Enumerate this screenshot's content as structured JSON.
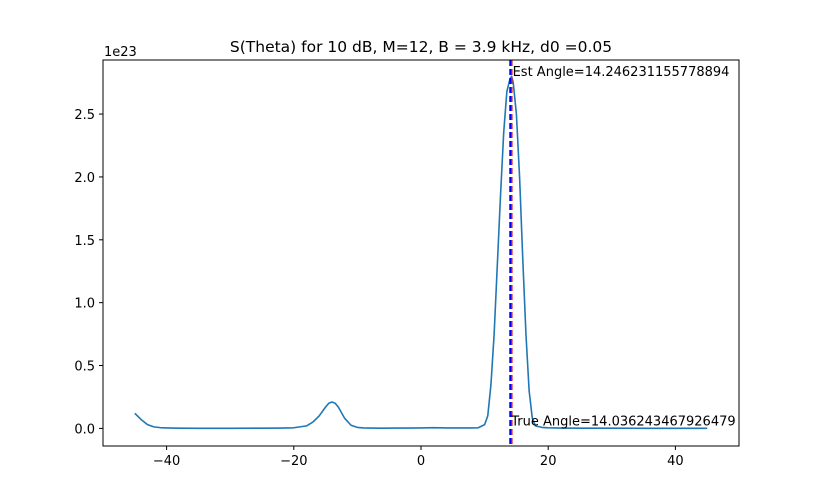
{
  "chart_data": {
    "type": "line",
    "title": "S(Theta) for 10 dB, M=12, B = 3.9 kHz, d0 =0.05",
    "xlabel": "",
    "ylabel": "",
    "y_scale_label": "1e23",
    "xlim": [
      -50,
      50
    ],
    "ylim": [
      -0.14,
      2.93
    ],
    "grid": false,
    "xticks": [
      -40,
      -20,
      0,
      20,
      40
    ],
    "xtick_labels": [
      "−40",
      "−20",
      "0",
      "20",
      "40"
    ],
    "yticks": [
      0.0,
      0.5,
      1.0,
      1.5,
      2.0,
      2.5
    ],
    "ytick_labels": [
      "0.0",
      "0.5",
      "1.0",
      "1.5",
      "2.0",
      "2.5"
    ],
    "series": [
      {
        "color": "#1f77b4",
        "x": [
          -45,
          -44,
          -43,
          -42,
          -41,
          -40,
          -38,
          -35,
          -30,
          -25,
          -22,
          -20,
          -18,
          -17,
          -16,
          -15,
          -14.5,
          -14,
          -13.5,
          -13,
          -12,
          -11,
          -10,
          -9,
          -8,
          -6,
          -4,
          -2,
          0,
          2,
          4,
          6,
          7,
          8,
          9,
          10,
          10.5,
          11,
          11.5,
          12,
          12.5,
          13,
          13.5,
          14,
          14.25,
          14.5,
          15,
          15.5,
          16,
          16.5,
          17,
          17.5,
          18,
          19,
          20,
          22,
          25,
          30,
          35,
          40,
          45
        ],
        "y": [
          0.12,
          0.07,
          0.03,
          0.012,
          0.006,
          0.004,
          0.002,
          0.001,
          0.001,
          0.002,
          0.003,
          0.005,
          0.02,
          0.05,
          0.1,
          0.17,
          0.2,
          0.21,
          0.2,
          0.17,
          0.08,
          0.025,
          0.008,
          0.004,
          0.003,
          0.002,
          0.003,
          0.003,
          0.004,
          0.006,
          0.004,
          0.004,
          0.004,
          0.004,
          0.005,
          0.03,
          0.1,
          0.35,
          0.75,
          1.3,
          1.85,
          2.35,
          2.68,
          2.78,
          2.8,
          2.75,
          2.5,
          2.0,
          1.35,
          0.75,
          0.3,
          0.08,
          0.02,
          0.008,
          0.005,
          0.003,
          0.002,
          0.002,
          0.001,
          0.001,
          0.001
        ]
      }
    ],
    "vlines": [
      {
        "x": 14.246231155778894,
        "color": "#d62728",
        "style": "dashed"
      },
      {
        "x": 14.036243467926479,
        "color": "#0000ff",
        "style": "dashed"
      }
    ],
    "annotations": [
      {
        "text": "Est Angle=14.246231155778894",
        "x": 14.246231155778894,
        "y": 2.78
      },
      {
        "text": "True Angle=14.036243467926479",
        "x": 14.036243467926479,
        "y": 0.0
      }
    ]
  }
}
